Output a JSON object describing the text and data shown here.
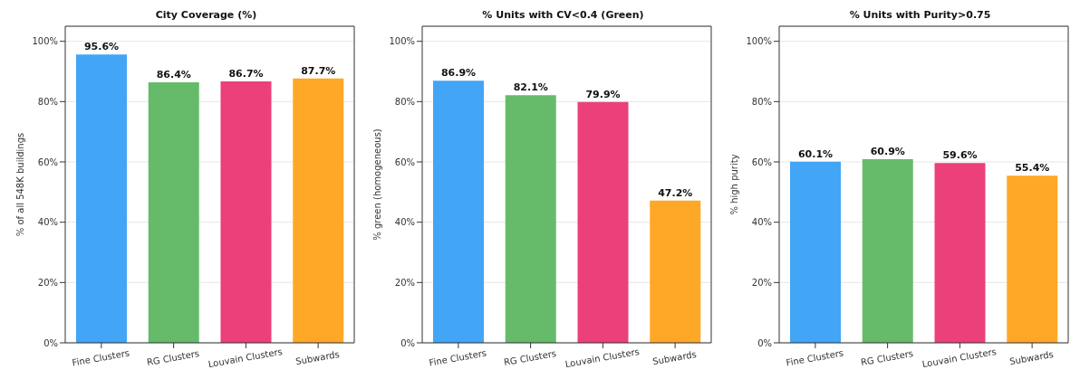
{
  "chart_data": [
    {
      "type": "bar",
      "title": "City Coverage (%)",
      "ylabel": "% of all 548K buildings",
      "categories": [
        "Fine Clusters",
        "RG Clusters",
        "Louvain Clusters",
        "Subwards"
      ],
      "values": [
        95.6,
        86.4,
        86.7,
        87.7
      ],
      "value_labels": [
        "95.6%",
        "86.4%",
        "86.7%",
        "87.7%"
      ],
      "colors": [
        "#42a5f5",
        "#66bb6a",
        "#ec407a",
        "#ffa726"
      ],
      "ylim": [
        0,
        105
      ],
      "yticks": [
        {
          "value": 0,
          "label": "0%"
        },
        {
          "value": 20,
          "label": "20%"
        },
        {
          "value": 40,
          "label": "40%"
        },
        {
          "value": 60,
          "label": "60%"
        },
        {
          "value": 80,
          "label": "80%"
        },
        {
          "value": 100,
          "label": "100%"
        }
      ],
      "grid": "y"
    },
    {
      "type": "bar",
      "title": "% Units with CV<0.4 (Green)",
      "ylabel": "% green (homogeneous)",
      "categories": [
        "Fine Clusters",
        "RG Clusters",
        "Louvain Clusters",
        "Subwards"
      ],
      "values": [
        86.9,
        82.1,
        79.9,
        47.2
      ],
      "value_labels": [
        "86.9%",
        "82.1%",
        "79.9%",
        "47.2%"
      ],
      "colors": [
        "#42a5f5",
        "#66bb6a",
        "#ec407a",
        "#ffa726"
      ],
      "ylim": [
        0,
        105
      ],
      "yticks": [
        {
          "value": 0,
          "label": "0%"
        },
        {
          "value": 20,
          "label": "20%"
        },
        {
          "value": 40,
          "label": "40%"
        },
        {
          "value": 60,
          "label": "60%"
        },
        {
          "value": 80,
          "label": "80%"
        },
        {
          "value": 100,
          "label": "100%"
        }
      ],
      "grid": "y"
    },
    {
      "type": "bar",
      "title": "% Units with Purity>0.75",
      "ylabel": "% high purity",
      "categories": [
        "Fine Clusters",
        "RG Clusters",
        "Louvain Clusters",
        "Subwards"
      ],
      "values": [
        60.1,
        60.9,
        59.6,
        55.4
      ],
      "value_labels": [
        "60.1%",
        "60.9%",
        "59.6%",
        "55.4%"
      ],
      "colors": [
        "#42a5f5",
        "#66bb6a",
        "#ec407a",
        "#ffa726"
      ],
      "ylim": [
        0,
        105
      ],
      "yticks": [
        {
          "value": 0,
          "label": "0%"
        },
        {
          "value": 20,
          "label": "20%"
        },
        {
          "value": 40,
          "label": "40%"
        },
        {
          "value": 60,
          "label": "60%"
        },
        {
          "value": 80,
          "label": "80%"
        },
        {
          "value": 100,
          "label": "100%"
        }
      ],
      "grid": "y"
    }
  ]
}
